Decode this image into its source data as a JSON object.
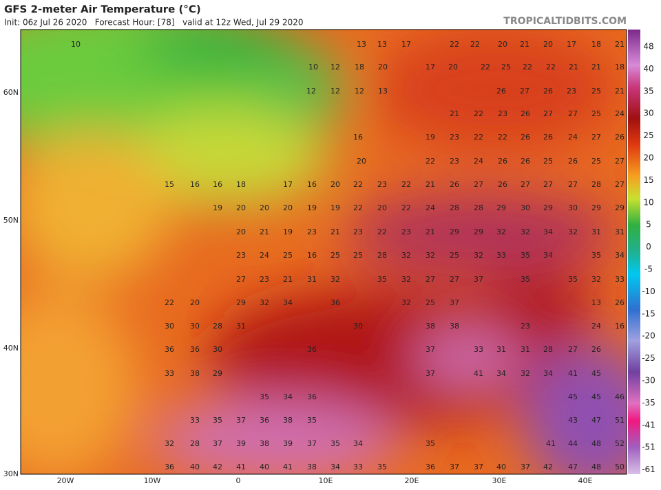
{
  "header": {
    "title": "GFS 2-meter Air Temperature (°C)",
    "subtitle": "Init: 06z Jul 26 2020   Forecast Hour: [78]   valid at 12z Wed, Jul 29 2020",
    "site": "TROPICALTIDBITS.COM"
  },
  "lat_labels": [
    "60N",
    "50N",
    "40N",
    "30N"
  ],
  "lon_labels": [
    "20W",
    "10W",
    "0",
    "10E",
    "20E",
    "30E",
    "40E"
  ],
  "colorbar": {
    "ticks": [
      48,
      40,
      35,
      30,
      25,
      20,
      15,
      10,
      5,
      0,
      -5,
      -10,
      -15,
      -20,
      -25,
      -30,
      -35,
      -41,
      -51,
      -61
    ]
  },
  "map_labels": [
    [
      10,
      13,
      13,
      17,
      22,
      22,
      20,
      21,
      20,
      17,
      18,
      21
    ],
    [
      10,
      12,
      18,
      20,
      17,
      20,
      22,
      25,
      22,
      22,
      21,
      21,
      18
    ],
    [
      12,
      12,
      12,
      13,
      26,
      27,
      26,
      23,
      25,
      21
    ],
    [
      21,
      22,
      23,
      26,
      27,
      27,
      25,
      24
    ],
    [
      16,
      19,
      23,
      22,
      22,
      26,
      26,
      24,
      27,
      26
    ],
    [
      20,
      22,
      23,
      24,
      26,
      26,
      25,
      26,
      25,
      27
    ],
    [
      15,
      16,
      16,
      18,
      17,
      16,
      20,
      22,
      23,
      22,
      21,
      26,
      27,
      26,
      27,
      27,
      27,
      28,
      27
    ],
    [
      19,
      20,
      20,
      20,
      19,
      19,
      22,
      20,
      22,
      24,
      28,
      28,
      29,
      30,
      29,
      30,
      29,
      29
    ],
    [
      20,
      21,
      19,
      23,
      21,
      23,
      22,
      23,
      21,
      29,
      29,
      32,
      32,
      34,
      32,
      31,
      31
    ],
    [
      23,
      24,
      25,
      16,
      25,
      25,
      28,
      32,
      32,
      25,
      32,
      33,
      35,
      34,
      35,
      34
    ],
    [
      27,
      23,
      21,
      31,
      32,
      35,
      32,
      27,
      27,
      37,
      35,
      35,
      32,
      33
    ],
    [
      22,
      20,
      29,
      32,
      34,
      36,
      32,
      25,
      37,
      13,
      26
    ],
    [
      30,
      30,
      28,
      31,
      30,
      38,
      38,
      23,
      24,
      16
    ],
    [
      36,
      36,
      30,
      36,
      37,
      33,
      31,
      31,
      28,
      27,
      26
    ],
    [
      33,
      38,
      29,
      37,
      41,
      34,
      32,
      34,
      41,
      45
    ],
    [
      35,
      34,
      36,
      45,
      45,
      46
    ],
    [
      33,
      35,
      37,
      36,
      38,
      35,
      43,
      47,
      51
    ],
    [
      32,
      28,
      37,
      39,
      38,
      39,
      37,
      35,
      34,
      35,
      41,
      44,
      48,
      52
    ],
    [
      36,
      40,
      42,
      41,
      40,
      41,
      38,
      34,
      33,
      35,
      36,
      37,
      37,
      40,
      37,
      42,
      47,
      48,
      50
    ]
  ]
}
